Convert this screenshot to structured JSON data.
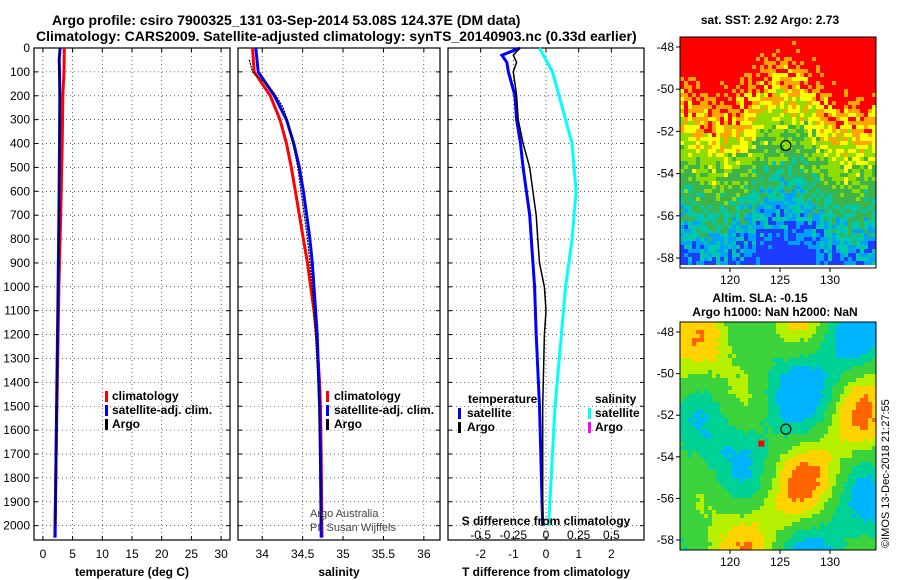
{
  "header": {
    "line1": "Argo profile: csiro 7900325_131 03-Sep-2014 53.08S 124.37E (DM data)",
    "line2": "Climatology: CARS2009. Satellite-adjusted climatology: synTS_20140903.nc (0.33d earlier)"
  },
  "colors": {
    "climatology": "#ff0000",
    "satellite": "#0000ff",
    "argo": "#000000",
    "sat_salinity": "#00ffff",
    "argo_salinity": "#ff00ff"
  },
  "depth_ticks": [
    "0",
    "100",
    "200",
    "300",
    "400",
    "500",
    "600",
    "700",
    "800",
    "900",
    "1000",
    "1100",
    "1200",
    "1300",
    "1400",
    "1500",
    "1600",
    "1700",
    "1800",
    "1900",
    "2000"
  ],
  "chart_data": [
    {
      "type": "line",
      "title": "",
      "xlabel": "temperature (deg C)",
      "ylabel": "",
      "xlim": [
        -1.5,
        31.5
      ],
      "ylim": [
        2060,
        0
      ],
      "x_ticks": [
        "0",
        "5",
        "10",
        "15",
        "20",
        "25",
        "30"
      ],
      "legend": [
        "climatology",
        "satellite-adj. clim.",
        "Argo"
      ],
      "series": [
        {
          "name": "climatology",
          "depth": [
            0,
            100,
            200,
            400,
            700,
            1000,
            1500,
            2050
          ],
          "values": [
            3.6,
            3.55,
            3.35,
            3.25,
            3.0,
            2.7,
            2.35,
            2.0
          ]
        },
        {
          "name": "satellite-adj. clim.",
          "depth": [
            0,
            50,
            100,
            200,
            400,
            700,
            1000,
            1500,
            2050
          ],
          "values": [
            2.9,
            2.75,
            2.8,
            2.85,
            2.8,
            2.7,
            2.55,
            2.3,
            2.05
          ]
        },
        {
          "name": "Argo",
          "depth": [
            0,
            50,
            100,
            200,
            400,
            700,
            1000,
            1500,
            2000
          ],
          "values": [
            2.8,
            2.7,
            2.75,
            2.9,
            2.85,
            2.7,
            2.55,
            2.3,
            2.1
          ]
        }
      ]
    },
    {
      "type": "line",
      "title": "",
      "xlabel": "salinity",
      "ylabel": "",
      "xlim": [
        33.7,
        36.2
      ],
      "ylim": [
        2060,
        0
      ],
      "x_ticks": [
        "34",
        "34.5",
        "35",
        "35.5",
        "36"
      ],
      "legend": [
        "climatology",
        "satellite-adj. clim.",
        "Argo"
      ],
      "credit": [
        "Argo Australia",
        "PI: Susan Wijffels"
      ],
      "series": [
        {
          "name": "climatology",
          "depth": [
            0,
            100,
            150,
            200,
            300,
            400,
            500,
            600,
            700,
            800,
            900,
            1000,
            1100,
            1200,
            1300,
            1400,
            1500,
            1700,
            2050
          ],
          "values": [
            33.88,
            33.9,
            34.0,
            34.1,
            34.22,
            34.3,
            34.36,
            34.41,
            34.46,
            34.51,
            34.56,
            34.6,
            34.64,
            34.67,
            34.69,
            34.71,
            34.72,
            34.73,
            34.74
          ]
        },
        {
          "name": "satellite-adj. clim.",
          "depth": [
            0,
            100,
            150,
            200,
            300,
            400,
            500,
            600,
            700,
            800,
            900,
            1000,
            1100,
            1200,
            1300,
            1400,
            1500,
            1700,
            2050
          ],
          "values": [
            33.92,
            33.95,
            34.05,
            34.15,
            34.3,
            34.39,
            34.46,
            34.51,
            34.55,
            34.59,
            34.62,
            34.64,
            34.66,
            34.68,
            34.69,
            34.7,
            34.71,
            34.72,
            34.73
          ]
        },
        {
          "name": "Argo",
          "depth": [
            50,
            100,
            130,
            160,
            200,
            250,
            300,
            400,
            500,
            600,
            700,
            800,
            900,
            1000,
            1200,
            1400,
            1600,
            1800,
            2000
          ],
          "values": [
            33.84,
            33.88,
            33.98,
            34.08,
            34.17,
            34.26,
            34.31,
            34.38,
            34.44,
            34.48,
            34.52,
            34.56,
            34.59,
            34.62,
            34.66,
            34.69,
            34.71,
            34.72,
            34.73
          ]
        }
      ]
    },
    {
      "type": "line",
      "title": "",
      "xlabel": "T difference from climatology",
      "xlabel_top": "S difference from climatology",
      "ylabel": "",
      "xlim": [
        -3.0,
        3.0
      ],
      "ylim": [
        2060,
        0
      ],
      "x_ticks": [
        "-2",
        "-1",
        "0",
        "1",
        "2"
      ],
      "x_ticks_top": [
        "-0.5",
        "-0.25",
        "0",
        "0.25",
        "0.5"
      ],
      "legend_left_title": "temperature",
      "legend_right_title": "salinity",
      "legend_left": [
        "satellite",
        "Argo"
      ],
      "legend_right": [
        "satellite",
        "Argo"
      ],
      "series": [
        {
          "name": "temperature satellite",
          "depth": [
            0,
            30,
            60,
            100,
            150,
            200,
            300,
            400,
            500,
            600,
            700,
            800,
            1000,
            1200,
            1500,
            2000
          ],
          "values": [
            -0.8,
            -1.35,
            -1.2,
            -1.15,
            -1.05,
            -0.95,
            -0.9,
            -0.78,
            -0.7,
            -0.6,
            -0.5,
            -0.45,
            -0.35,
            -0.3,
            -0.2,
            -0.1
          ]
        },
        {
          "name": "temperature Argo",
          "depth": [
            0,
            30,
            60,
            100,
            150,
            200,
            300,
            400,
            500,
            600,
            700,
            800,
            900,
            1000,
            1100,
            1200,
            1500,
            2000
          ],
          "values": [
            -0.8,
            -1.0,
            -0.9,
            -1.0,
            -0.95,
            -0.9,
            -0.85,
            -0.7,
            -0.5,
            -0.4,
            -0.3,
            -0.25,
            -0.2,
            -0.05,
            0.0,
            -0.05,
            -0.1,
            -0.1
          ]
        },
        {
          "name": "salinity satellite",
          "depth": [
            0,
            100,
            200,
            300,
            400,
            600,
            800,
            1000,
            1500,
            2000
          ],
          "values": [
            -0.05,
            0.05,
            0.1,
            0.15,
            0.2,
            0.23,
            0.2,
            0.15,
            0.07,
            0.02
          ]
        }
      ]
    }
  ],
  "maps": {
    "sst": {
      "title": "sat. SST: 2.92 Argo: 2.73",
      "lat_ticks": [
        "-48",
        "-50",
        "-52",
        "-54",
        "-56",
        "-58"
      ],
      "lon_ticks": [
        "120",
        "125",
        "130"
      ]
    },
    "sla": {
      "title_line1": "Altim. SLA: -0.15",
      "title_line2": "Argo h1000: NaN h2000: NaN",
      "lat_ticks": [
        "-48",
        "-50",
        "-52",
        "-54",
        "-56",
        "-58"
      ],
      "lon_ticks": [
        "120",
        "125",
        "130"
      ]
    }
  },
  "watermark": "©IMOS 13-Dec-2018 21:27:55"
}
